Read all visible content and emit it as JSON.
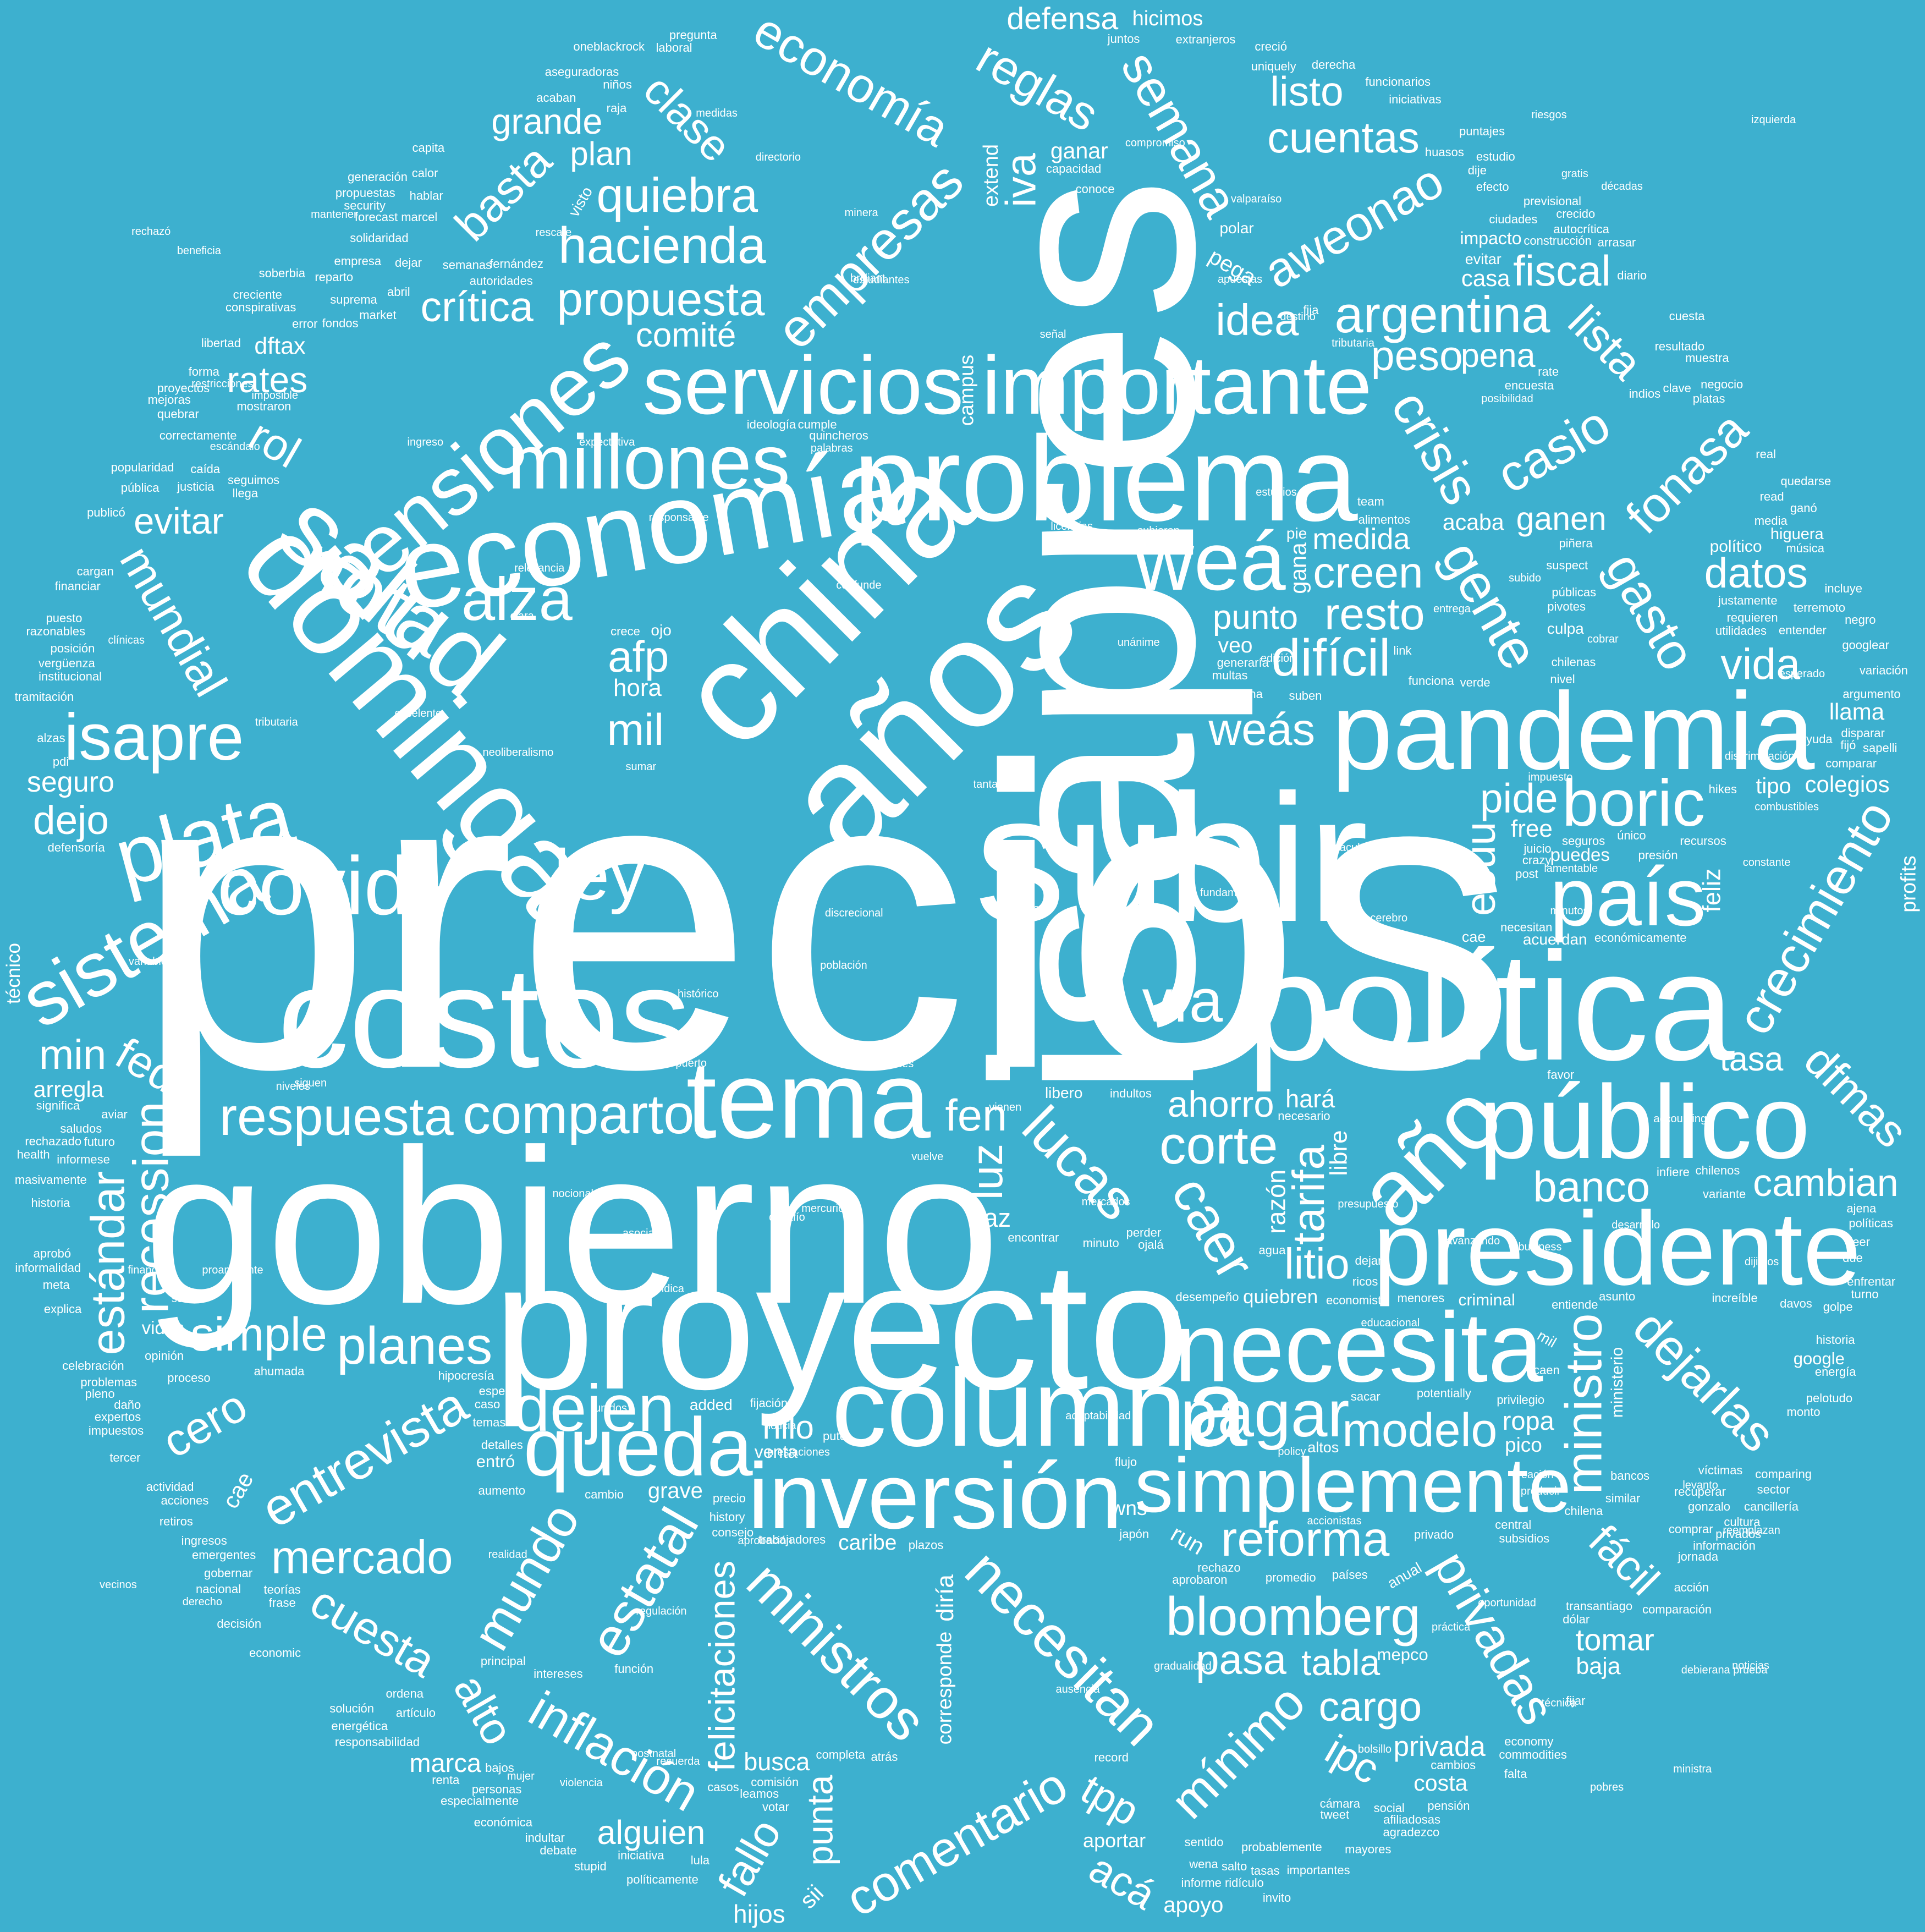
{
  "cloud": {
    "background": "#3db0cf",
    "text_color": "#ffffff",
    "words": [
      "precios",
      "gobierno",
      "isapres",
      "subir",
      "proyecto",
      "costos",
      "política",
      "china",
      "años",
      "economía",
      "problema",
      "pandemia",
      "dominga",
      "salud",
      "presidente",
      "público",
      "columna",
      "inversión",
      "tema",
      "necesita",
      "simplemente",
      "queda",
      "año",
      "país",
      "servicios",
      "millones",
      "importante",
      "weá",
      "pensiones",
      "nota",
      "covid",
      "plata",
      "isapre",
      "sistema",
      "alza",
      "boric",
      "ley",
      "dejen",
      "pagar",
      "vía",
      "necesitan",
      "lucas",
      "ministros",
      "comparto",
      "caer",
      "gente",
      "estatal",
      "empresas",
      "bloomberg",
      "respuesta",
      "corte",
      "crisis",
      "planes",
      "difícil",
      "entrevista",
      "mundo",
      "argentina",
      "ministro",
      "hacienda",
      "gasto",
      "casio",
      "crecimiento",
      "inflación",
      "semana",
      "mínimo",
      "dejarlas",
      "privadas",
      "recession",
      "comentario",
      "autoridades",
      "necesitan",
      "economía",
      "fonasa",
      "reforma",
      "aweonao",
      "chilenos",
      "quiebra",
      "justicia",
      "países",
      "historia",
      "reglas",
      "laboral",
      "requieren",
      "simple",
      "estándar",
      "modelo",
      "comisión",
      "propuesta",
      "solución",
      "mercado",
      "mundial",
      "cambio",
      "basta",
      "social",
      "dejar",
      "weás",
      "aumento",
      "cuesta",
      "juicio",
      "lista",
      "tarifa",
      "central",
      "resto",
      "dfmas",
      "cero",
      "mil",
      "fed",
      "rol",
      "alto",
      "fen",
      "idea",
      "afp",
      "luz",
      "creen",
      "leer",
      "clase",
      "fallo",
      "fácil",
      "cuentas",
      "litio",
      "vida",
      "fiscal",
      "wena",
      "indultos",
      "forma",
      "banco",
      "encuesta",
      "crítica",
      "peso",
      "eeuu",
      "datos",
      "iva",
      "ipc",
      "tpp",
      "acá",
      "favor",
      "pasa",
      "min",
      "frase",
      "cargo",
      "listo",
      "pide",
      "ayuda",
      "iniciativa",
      "actividad",
      "promedio",
      "jornada",
      "tweet",
      "energía",
      "razonables",
      "saludos",
      "comparar",
      "cancillería",
      "dejo",
      "japón",
      "encontrar",
      "informese",
      "precio",
      "rechazo",
      "recursos",
      "empresa",
      "información",
      "económica",
      "privados",
      "extranjeros",
      "sentido",
      "víctimas",
      "pleno",
      "recuperar",
      "mañana",
      "cambios",
      "seguros",
      "disparar",
      "cambian",
      "market",
      "argumento",
      "proyectos",
      "derecha",
      "platas",
      "puesto",
      "googlear",
      "reparto",
      "impuestos",
      "suprema",
      "indultar",
      "presión",
      "fernández",
      "sector",
      "solidaridad",
      "funcionarios",
      "iniciativas",
      "propuestas",
      "felicitaciones",
      "falta",
      "perder",
      "evitar",
      "ahorro",
      "invito",
      "rates",
      "cuesta",
      "entender",
      "crecido",
      "tabla",
      "monto",
      "punta",
      "retiros",
      "funciona",
      "opinión",
      "variación",
      "muestra",
      "celebración",
      "grande",
      "probablemente",
      "desempeño",
      "juntos",
      "informe ridículo",
      "previsional",
      "similar",
      "detalles",
      "libertad",
      "fondos",
      "plazos",
      "públicas",
      "terremoto",
      "soberbia",
      "privado",
      "financiar",
      "mayores",
      "principal",
      "personas",
      "economic",
      "significa",
      "fijación",
      "consejo",
      "oneblackrock",
      "punto",
      "media",
      "comité",
      "cultura",
      "alguien",
      "aprobó",
      "tasa",
      "acaban",
      "renta",
      "pena",
      "alimentos",
      "ordena",
      "hilo",
      "creció",
      "chilena",
      "niños",
      "bancos",
      "futuro",
      "plan",
      "debate",
      "efecto",
      "estudio",
      "ahumada",
      "cargan",
      "único",
      "sacar",
      "ganen",
      "completa",
      "gobernar",
      "tercer",
      "pivotes",
      "rechazado",
      "ciudades",
      "enfrentar",
      "institucional",
      "agradezco",
      "capacidad",
      "multas",
      "historia",
      "publicó",
      "responsabilidad",
      "proceso",
      "importantes",
      "forecast marcel",
      "defensa",
      "correctamente",
      "políticamente",
      "semanas",
      "vergüenza",
      "tomar",
      "quedarse",
      "mostraron",
      "especialmente",
      "generaría",
      "ingresos",
      "conspirativas",
      "economy",
      "mejoras",
      "puntajes",
      "potentially",
      "suben",
      "transantiago",
      "seguimos",
      "pensión",
      "huasos",
      "comparación",
      "energética",
      "medida",
      "popularidad",
      "tasas",
      "stupid",
      "verde",
      "security",
      "privilegio",
      "menores",
      "gonzalo",
      "defensoría",
      "cámara",
      "construcción",
      "explica",
      "leamos",
      "políticas",
      "record",
      "pregunta",
      "tramitación",
      "uniquely",
      "seguro",
      "posición",
      "nacional",
      "hipocresía",
      "pelotudo",
      "económicamente",
      "generación",
      "incluye",
      "música",
      "creciente",
      "autocrítica",
      "aseguradoras",
      "trabajadores",
      "subsidios",
      "quincheros",
      "utilidades",
      "privada",
      "masivamente",
      "negocio",
      "problemas",
      "suspect",
      "emergentes",
      "ideología",
      "commodities",
      "economista",
      "justamente",
      "history",
      "sapelli",
      "pública",
      "quebrar",
      "entiende",
      "votar",
      "aprobaron",
      "espero",
      "función",
      "decisión",
      "intereses",
      "necesario",
      "resultado",
      "teorías",
      "piñera",
      "variante",
      "increíble",
      "golpe",
      "informalidad",
      "comparing",
      "expertos",
      "razón",
      "marca",
      "indios",
      "paz",
      "afiliadosas",
      "negro",
      "turno",
      "ropa",
      "ricos",
      "ganó",
      "meta",
      "caída",
      "flujo",
      "acciones",
      "conoce",
      "hablar",
      "chilenas",
      "bajos",
      "hijos",
      "dije",
      "fijó",
      "ajena",
      "busca",
      "hará",
      "health",
      "dejan",
      "infiere",
      "minuto",
      "comprar",
      "post",
      "fijar",
      "feliz",
      "due",
      "caen",
      "diría",
      "hora",
      "pdi",
      "artículo",
      "calor",
      "crece",
      "raja",
      "free",
      "libre",
      "baja",
      "llega",
      "ojalá",
      "run",
      "read",
      "dftax",
      "daño",
      "acción",
      "hikes",
      "cumple",
      "asunto",
      "casa",
      "cae",
      "aviar",
      "fija",
      "sii",
      "link",
      "colegios",
      "llama",
      "casos",
      "gana",
      "arrasar",
      "arregla",
      "paso",
      "acaba",
      "diario",
      "ganar",
      "costa",
      "pega",
      "puto",
      "rate",
      "salto",
      "capita",
      "apoyo",
      "crazy",
      "grave",
      "caso",
      "abril",
      "atrás",
      "error",
      "tipo",
      "real",
      "crédito",
      "brilliant",
      "agua",
      "bolsillo",
      "nivel",
      "veo",
      "alzas",
      "davos",
      "dólar",
      "caribe",
      "desafío",
      "realidad",
      "gratis",
      "policy",
      "profits",
      "edición",
      "team",
      "ministra",
      "regulación",
      "histórico",
      "estudios",
      "hicimos",
      "riesgos",
      "temas",
      "población",
      "extend",
      "business",
      "izquierda",
      "corresponde",
      "excelente",
      "levanto",
      "accounting",
      "pico",
      "cobrar",
      "wns",
      "indica",
      "campus",
      "destino",
      "ingreso",
      "mercados",
      "asociados",
      "niveles",
      "educacional",
      "reemplazan",
      "pobres",
      "mantener",
      "compromiso",
      "ausencia",
      "aportar",
      "siguen",
      "entrega",
      "metro",
      "cerebro",
      "estudiantes",
      "palabras",
      "proambiente",
      "valparaíso",
      "vuelve",
      "restricciones",
      "técnico",
      "quiebren",
      "mujer",
      "fundamento",
      "directorio",
      "aprobación",
      "esperado",
      "confunde",
      "gradualidad",
      "desarrollo",
      "práctica",
      "minera",
      "recuerda",
      "imposible",
      "puerto",
      "minutos",
      "vidas",
      "responsable",
      "posibilidad",
      "noticia",
      "vecinos",
      "relevancia",
      "unánime",
      "subido",
      "puedes",
      "rechazó",
      "neoliberalismo",
      "imágenes",
      "mercurio",
      "variable",
      "reforma",
      "tributaria",
      "venta",
      "oportunidad",
      "subieron",
      "unidos",
      "presupuesto",
      "señal",
      "nocionales",
      "impacto",
      "mepco",
      "google",
      "facultad",
      "creación",
      "accionistas",
      "discrecional",
      "expectativa",
      "entró",
      "avanzando",
      "adaptabilidad",
      "beneficia",
      "constante",
      "décadas",
      "criminal",
      "discriminación",
      "licencias",
      "medidas",
      "financiero",
      "prestaciones",
      "senado",
      "rescate",
      "ministerio",
      "político",
      "tributaria",
      "violencia",
      "tantas",
      "postnatal",
      "noticias",
      "técnica",
      "vienen",
      "sumar",
      "producir",
      "lamentable",
      "derecho",
      "combustibles",
      "higuera",
      "clínicas",
      "escándalo",
      "impuesto",
      "dijimos",
      "clave",
      "apuestas",
      "polar",
      "culpa",
      "visto",
      "acuerdan",
      "libero",
      "debierana prueba",
      "added",
      "lula",
      "ojo",
      "pie",
      "clara",
      "altos",
      "anual",
      "cae",
      "mil",
      "evitar"
    ]
  }
}
